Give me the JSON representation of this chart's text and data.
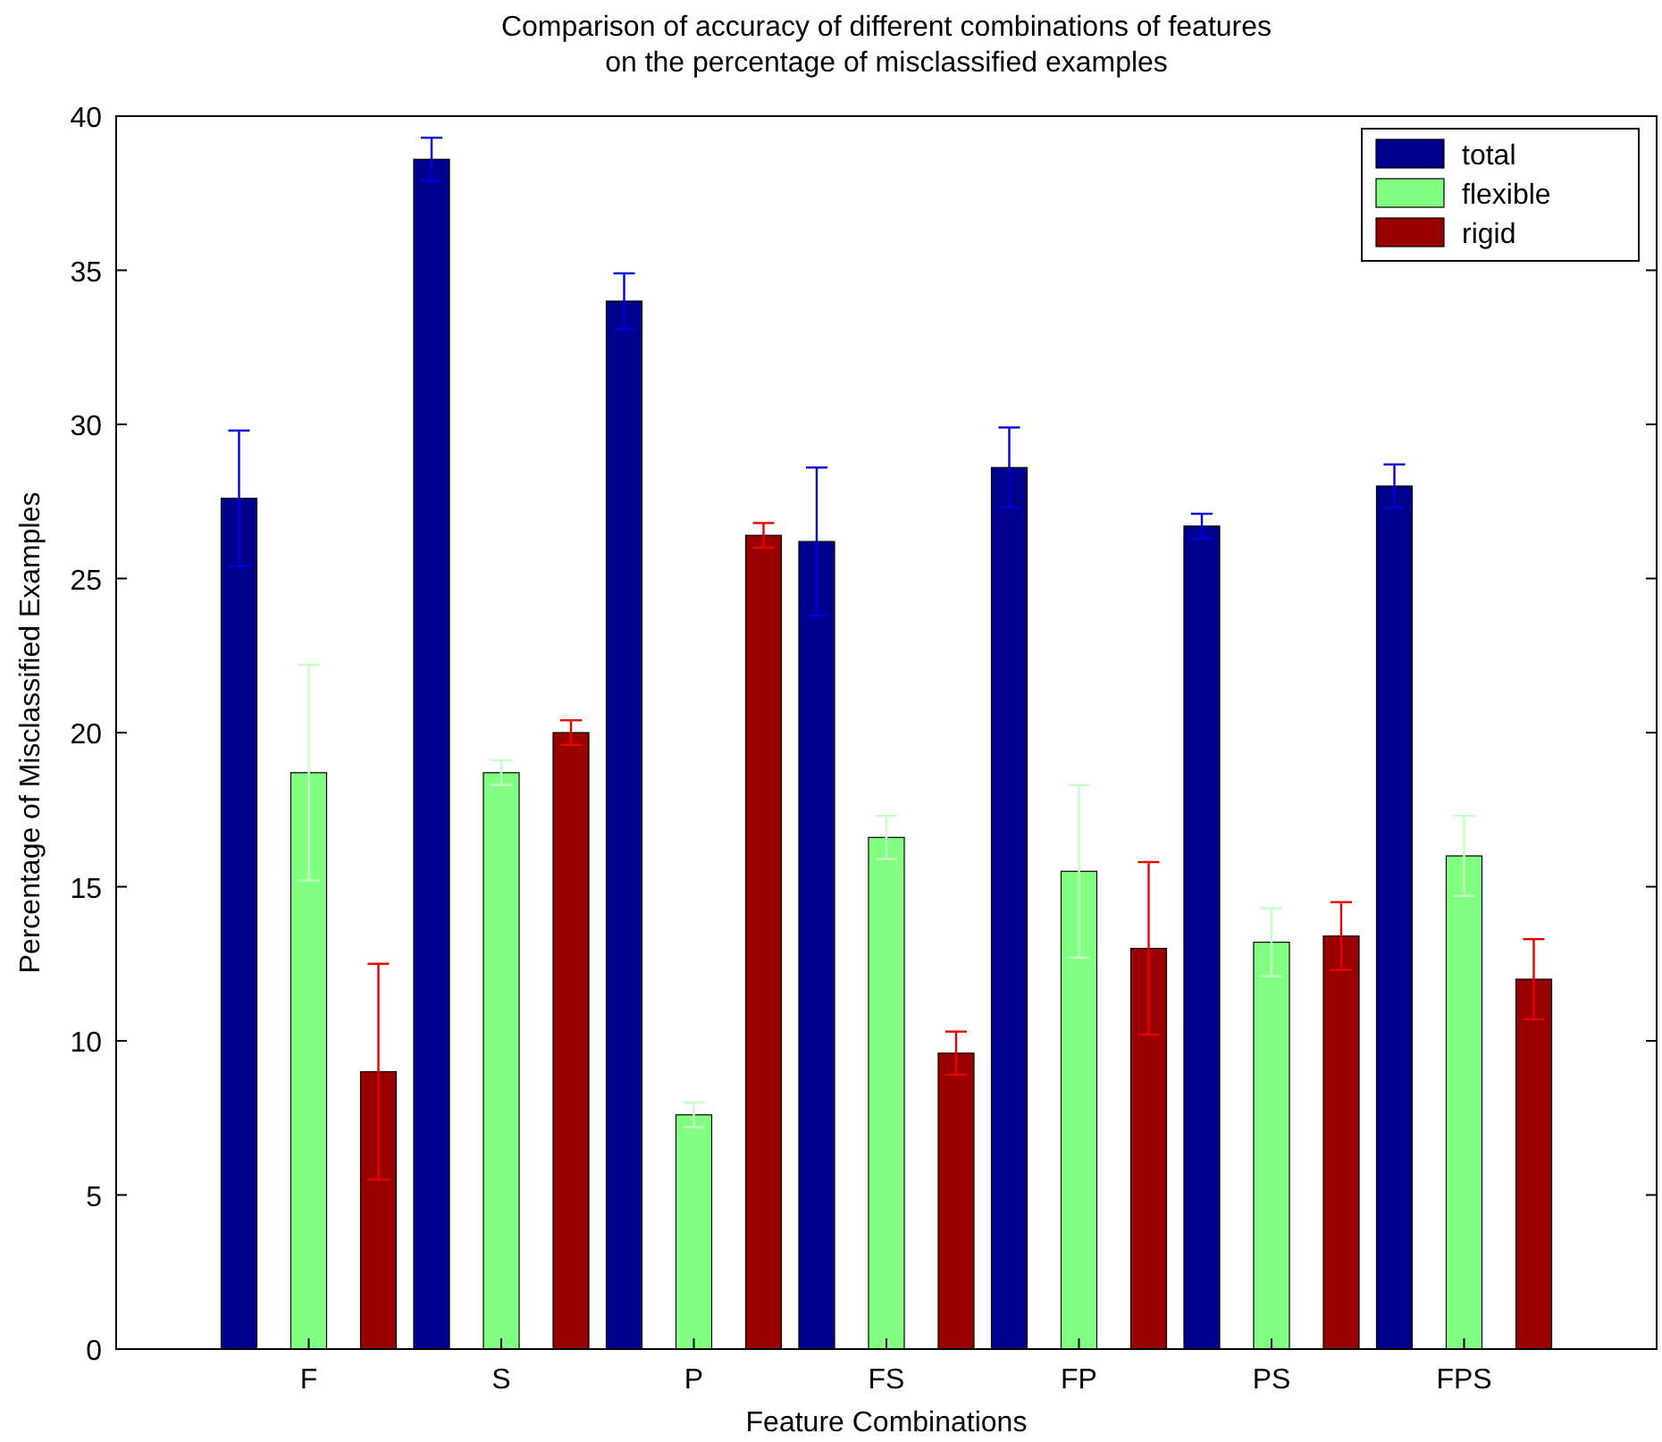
{
  "chart_data": {
    "type": "bar",
    "title": "Comparison of accuracy of different combinations of features\non the percentage of misclassified examples",
    "xlabel": "Feature Combinations",
    "ylabel": "Percentage of Misclassified Examples",
    "categories": [
      "F",
      "S",
      "P",
      "FS",
      "FP",
      "PS",
      "FPS"
    ],
    "series": [
      {
        "name": "total",
        "color": "#00008f",
        "values": [
          27.6,
          38.6,
          34.0,
          26.2,
          28.6,
          26.7,
          28.0
        ],
        "errors": [
          2.2,
          0.7,
          0.9,
          2.4,
          1.3,
          0.4,
          0.7
        ]
      },
      {
        "name": "flexible",
        "color": "#80ff80",
        "values": [
          18.7,
          18.7,
          7.6,
          16.6,
          15.5,
          13.2,
          16.0
        ],
        "errors": [
          3.5,
          0.4,
          0.4,
          0.7,
          2.8,
          1.1,
          1.3
        ]
      },
      {
        "name": "rigid",
        "color": "#990000",
        "values": [
          9.0,
          20.0,
          26.4,
          9.6,
          13.0,
          13.4,
          12.0
        ],
        "errors": [
          3.5,
          0.4,
          0.4,
          0.7,
          2.8,
          1.1,
          1.3
        ]
      }
    ],
    "ylim": [
      0,
      40
    ],
    "yticks": [
      0,
      5,
      10,
      15,
      20,
      25,
      30,
      35,
      40
    ],
    "grid": false,
    "legend": "top right"
  }
}
